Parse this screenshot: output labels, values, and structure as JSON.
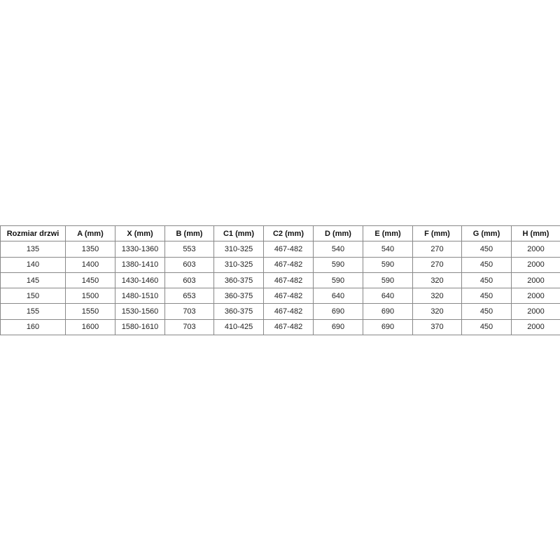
{
  "table": {
    "headers": [
      "Rozmiar drzwi",
      "A (mm)",
      "X (mm)",
      "B (mm)",
      "C1 (mm)",
      "C2 (mm)",
      "D (mm)",
      "E (mm)",
      "F (mm)",
      "G (mm)",
      "H (mm)"
    ],
    "rows": [
      [
        "135",
        "1350",
        "1330-1360",
        "553",
        "310-325",
        "467-482",
        "540",
        "540",
        "270",
        "450",
        "2000"
      ],
      [
        "140",
        "1400",
        "1380-1410",
        "603",
        "310-325",
        "467-482",
        "590",
        "590",
        "270",
        "450",
        "2000"
      ],
      [
        "145",
        "1450",
        "1430-1460",
        "603",
        "360-375",
        "467-482",
        "590",
        "590",
        "320",
        "450",
        "2000"
      ],
      [
        "150",
        "1500",
        "1480-1510",
        "653",
        "360-375",
        "467-482",
        "640",
        "640",
        "320",
        "450",
        "2000"
      ],
      [
        "155",
        "1550",
        "1530-1560",
        "703",
        "360-375",
        "467-482",
        "690",
        "690",
        "320",
        "450",
        "2000"
      ],
      [
        "160",
        "1600",
        "1580-1610",
        "703",
        "410-425",
        "467-482",
        "690",
        "690",
        "370",
        "450",
        "2000"
      ]
    ]
  }
}
